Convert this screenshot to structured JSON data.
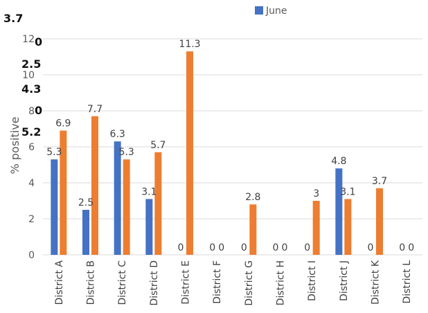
{
  "chart_data": {
    "type": "bar",
    "ylabel": "% positive",
    "ylim": [
      0,
      12
    ],
    "yticks": [
      "0",
      "2",
      "4",
      "6",
      "8",
      "10",
      "12"
    ],
    "grid": true,
    "legend_position": "top",
    "categories": [
      "District A",
      "District B",
      "District C",
      "District D",
      "District E",
      "District F",
      "District G",
      "District H",
      "District I",
      "District J",
      "District K",
      "District L"
    ],
    "series": [
      {
        "name": "",
        "color": "#4472c4",
        "values": [
          5.3,
          2.5,
          6.3,
          3.1,
          0,
          0,
          0,
          0,
          0,
          4.8,
          0,
          0
        ],
        "labels": [
          "5.3",
          "2.5",
          "6.3",
          "3.1",
          "0",
          "0",
          "0",
          "0",
          "0",
          "4.8",
          "0",
          "0"
        ]
      },
      {
        "name": "June",
        "color": "#ed7d31",
        "values": [
          6.9,
          7.7,
          5.3,
          5.7,
          11.3,
          0,
          2.8,
          0,
          3,
          3.1,
          3.7,
          0
        ],
        "labels": [
          "6.9",
          "7.7",
          "5.3",
          "5.7",
          "11.3",
          "0",
          "2.8",
          "0",
          "3",
          "3.1",
          "3.7",
          "0"
        ]
      }
    ]
  },
  "stray_labels": [
    "3.7",
    "0",
    "2.5",
    "4.3",
    "0",
    "5.2"
  ]
}
